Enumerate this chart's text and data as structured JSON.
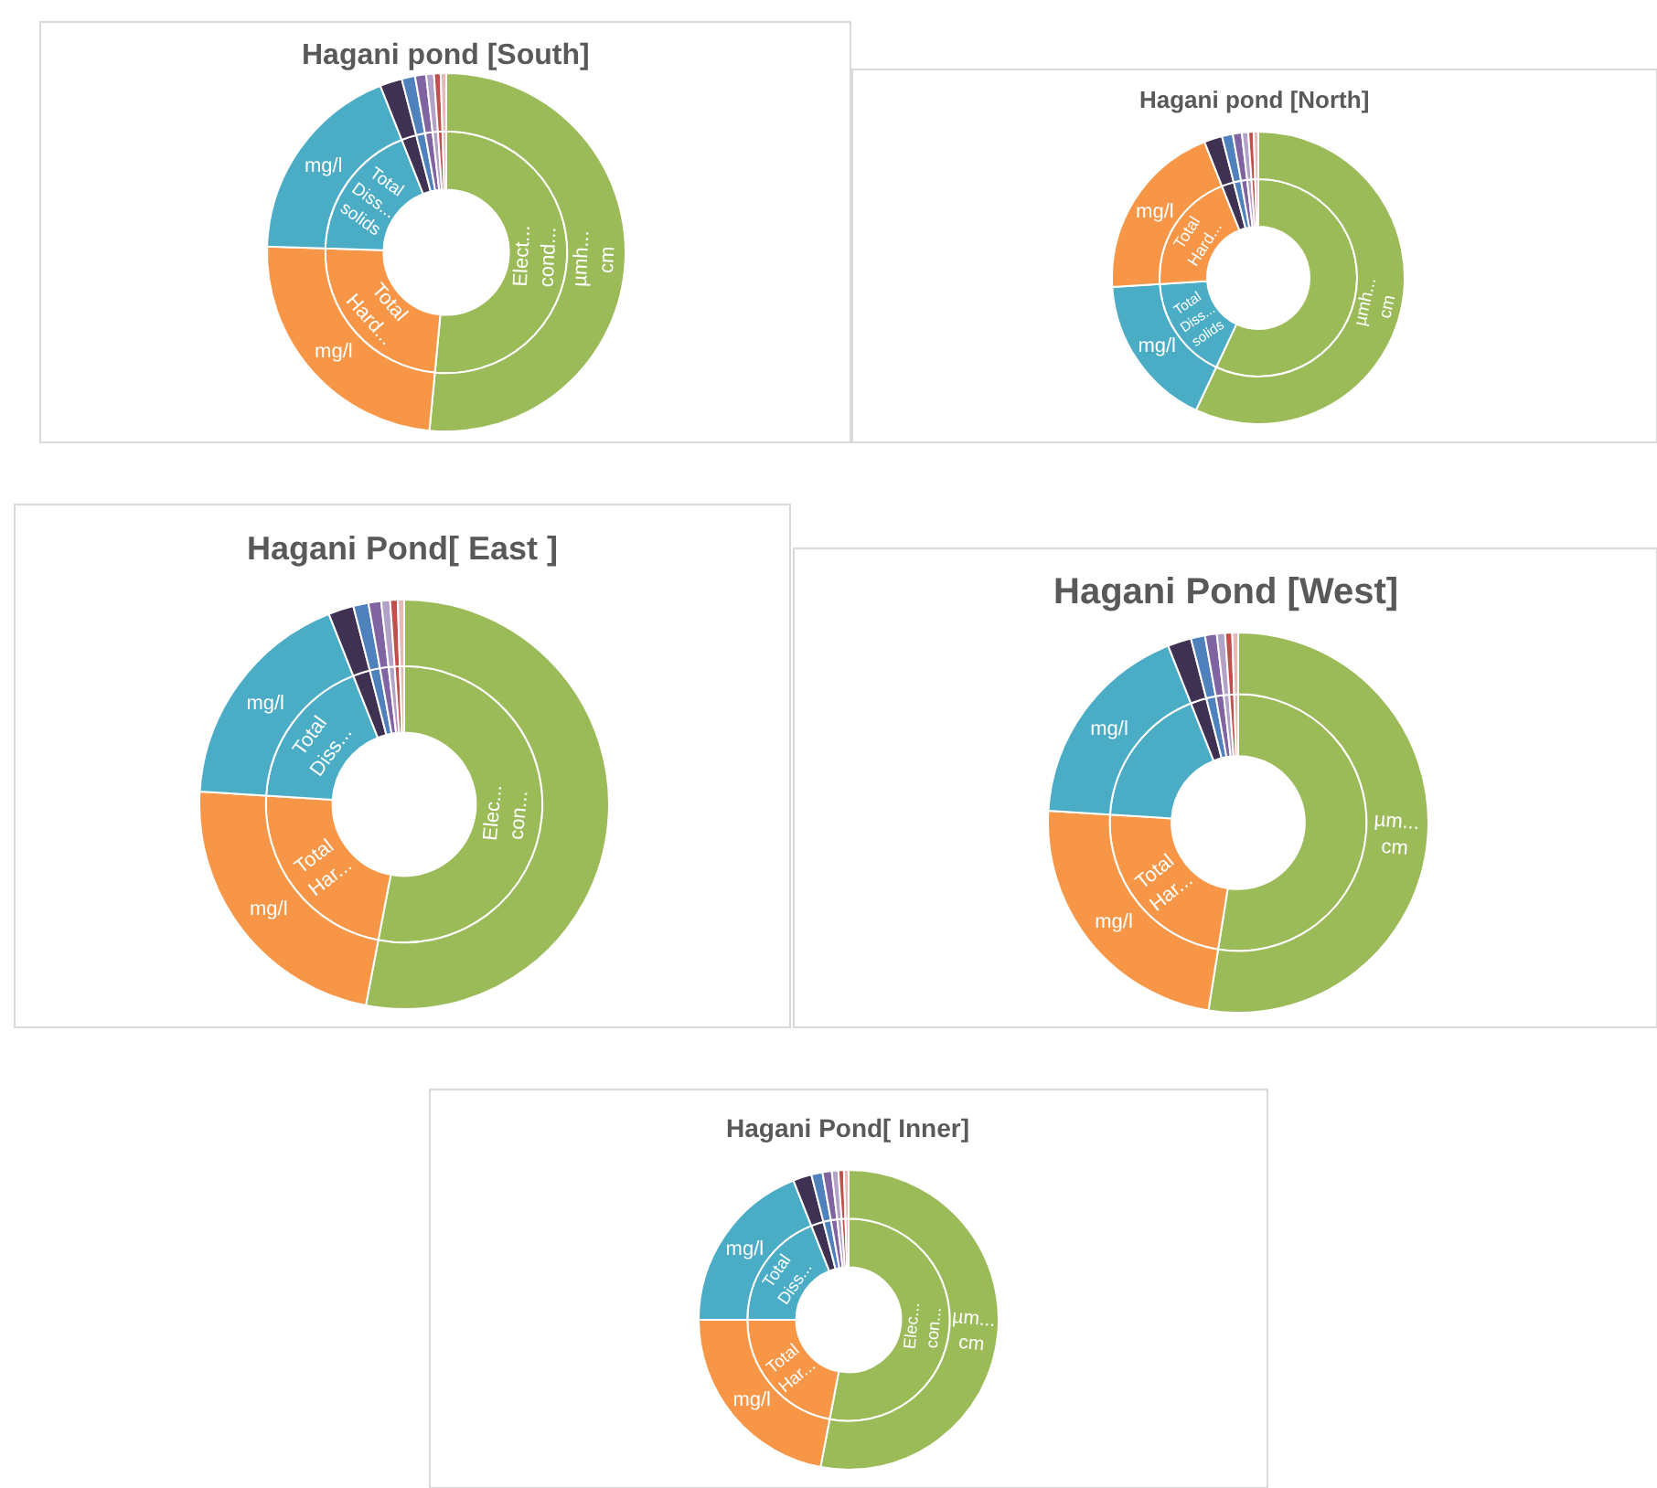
{
  "chart_data": [
    {
      "type": "donut",
      "title": "Hagani pond [South]",
      "categories": [
        "Elect...\ncond...",
        "Total\nHard...",
        "Total\nDiss...\nsolids",
        null,
        null,
        null,
        null,
        null,
        null
      ],
      "series": [
        {
          "values": [
            51.5,
            24,
            18.5,
            2.0,
            1.2,
            1.0,
            0.7,
            0.6,
            0.5
          ],
          "colors": [
            "#9bbb59",
            "#f79646",
            "#4bacc6",
            "#3f3151",
            "#4f81bd",
            "#8064a2",
            "#b3a2c7",
            "#c0504d",
            "#e6b9b8"
          ]
        },
        {
          "values": [
            51.5,
            24,
            18.5,
            2.0,
            1.2,
            1.0,
            0.7,
            0.6,
            0.5
          ],
          "colors": [
            "#9bbb59",
            "#f79646",
            "#4bacc6",
            "#3f3151",
            "#4f81bd",
            "#8064a2",
            "#b3a2c7",
            "#c0504d",
            "#e6b9b8"
          ],
          "value_labels": [
            "µmh...\ncm",
            "mg/l",
            "mg/l",
            null,
            null,
            null,
            null,
            null,
            null
          ]
        }
      ]
    },
    {
      "type": "donut",
      "title": "Hagani pond [North]",
      "categories": [
        null,
        "Total\nDiss...\nsolids",
        "Total\nHard...",
        null,
        null,
        null,
        null,
        null,
        null
      ],
      "series": [
        {
          "values": [
            57,
            17,
            20,
            2.0,
            1.2,
            1.0,
            0.7,
            0.6,
            0.5
          ],
          "colors": [
            "#9bbb59",
            "#4bacc6",
            "#f79646",
            "#3f3151",
            "#4f81bd",
            "#8064a2",
            "#b3a2c7",
            "#c0504d",
            "#e6b9b8"
          ]
        },
        {
          "values": [
            57,
            17,
            20,
            2.0,
            1.2,
            1.0,
            0.7,
            0.6,
            0.5
          ],
          "colors": [
            "#9bbb59",
            "#4bacc6",
            "#f79646",
            "#3f3151",
            "#4f81bd",
            "#8064a2",
            "#b3a2c7",
            "#c0504d",
            "#e6b9b8"
          ],
          "value_labels": [
            "µmh...\ncm",
            "mg/l",
            "mg/l",
            null,
            null,
            null,
            null,
            null,
            null
          ]
        }
      ]
    },
    {
      "type": "donut",
      "title": "Hagani Pond[ East ]",
      "categories": [
        "Elec...\ncon...",
        "Total\nHar...",
        "Total\nDiss...",
        null,
        null,
        null,
        null,
        null,
        null
      ],
      "series": [
        {
          "values": [
            53,
            23,
            18,
            2.0,
            1.2,
            1.0,
            0.7,
            0.6,
            0.5
          ],
          "colors": [
            "#9bbb59",
            "#f79646",
            "#4bacc6",
            "#3f3151",
            "#4f81bd",
            "#8064a2",
            "#b3a2c7",
            "#c0504d",
            "#e6b9b8"
          ]
        },
        {
          "values": [
            53,
            23,
            18,
            2.0,
            1.2,
            1.0,
            0.7,
            0.6,
            0.5
          ],
          "colors": [
            "#9bbb59",
            "#f79646",
            "#4bacc6",
            "#3f3151",
            "#4f81bd",
            "#8064a2",
            "#b3a2c7",
            "#c0504d",
            "#e6b9b8"
          ],
          "value_labels": [
            null,
            "mg/l",
            "mg/l",
            null,
            null,
            null,
            null,
            null,
            null
          ]
        }
      ]
    },
    {
      "type": "donut",
      "title": "Hagani Pond [West]",
      "categories": [
        null,
        "Total\nHar...",
        null,
        null,
        null,
        null,
        null,
        null,
        null
      ],
      "series": [
        {
          "values": [
            52.5,
            23.5,
            18,
            2.0,
            1.2,
            1.0,
            0.7,
            0.6,
            0.5
          ],
          "colors": [
            "#9bbb59",
            "#f79646",
            "#4bacc6",
            "#3f3151",
            "#4f81bd",
            "#8064a2",
            "#b3a2c7",
            "#c0504d",
            "#e6b9b8"
          ]
        },
        {
          "values": [
            52.5,
            23.5,
            18,
            2.0,
            1.2,
            1.0,
            0.7,
            0.6,
            0.5
          ],
          "colors": [
            "#9bbb59",
            "#f79646",
            "#4bacc6",
            "#3f3151",
            "#4f81bd",
            "#8064a2",
            "#b3a2c7",
            "#c0504d",
            "#e6b9b8"
          ],
          "value_labels": [
            "µm...\ncm",
            "mg/l",
            "mg/l",
            null,
            null,
            null,
            null,
            null,
            null
          ]
        }
      ]
    },
    {
      "type": "donut",
      "title": "Hagani Pond[ Inner]",
      "categories": [
        "Elec...\ncon...",
        "Total\nHar...",
        "Total\nDiss...",
        null,
        null,
        null,
        null,
        null,
        null
      ],
      "series": [
        {
          "values": [
            53,
            22,
            19,
            2.0,
            1.2,
            1.0,
            0.7,
            0.6,
            0.5
          ],
          "colors": [
            "#9bbb59",
            "#f79646",
            "#4bacc6",
            "#3f3151",
            "#4f81bd",
            "#8064a2",
            "#b3a2c7",
            "#c0504d",
            "#e6b9b8"
          ]
        },
        {
          "values": [
            53,
            22,
            19,
            2.0,
            1.2,
            1.0,
            0.7,
            0.6,
            0.5
          ],
          "colors": [
            "#9bbb59",
            "#f79646",
            "#4bacc6",
            "#3f3151",
            "#4f81bd",
            "#8064a2",
            "#b3a2c7",
            "#c0504d",
            "#e6b9b8"
          ],
          "value_labels": [
            "µm...\ncm",
            "mg/l",
            "mg/l",
            null,
            null,
            null,
            null,
            null,
            null
          ]
        }
      ]
    }
  ]
}
